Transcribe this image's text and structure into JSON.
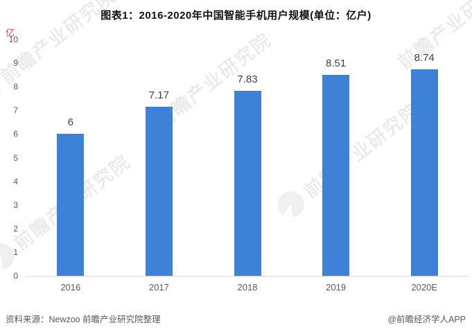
{
  "title": "图表1：2016-2020年中国智能手机用户规模(单位：亿户)",
  "y_unit_label": "亿",
  "watermark": {
    "text": "前瞻产业研究院"
  },
  "footer": {
    "source": "资料来源：Newzoo 前瞻产业研究院整理",
    "credit": "@前瞻经济学人APP"
  },
  "colors": {
    "bar": "#3E82D8",
    "axis_line": "#d9d9d9",
    "tick_text": "#595959",
    "unit_red": "#e2403b"
  },
  "chart_data": {
    "type": "bar",
    "categories": [
      "2016",
      "2017",
      "2018",
      "2019",
      "2020E"
    ],
    "values": [
      6,
      7.17,
      7.83,
      8.51,
      8.74
    ],
    "value_labels": [
      "6",
      "7.17",
      "7.83",
      "8.51",
      "8.74"
    ],
    "title": "图表1：2016-2020年中国智能手机用户规模(单位：亿户)",
    "xlabel": "",
    "ylabel": "亿",
    "ylim": [
      0,
      10
    ],
    "yticks": [
      0,
      1,
      2,
      3,
      4,
      5,
      6,
      7,
      8,
      9,
      10
    ],
    "grid": false,
    "legend": false,
    "bar_color": "#3E82D8"
  }
}
